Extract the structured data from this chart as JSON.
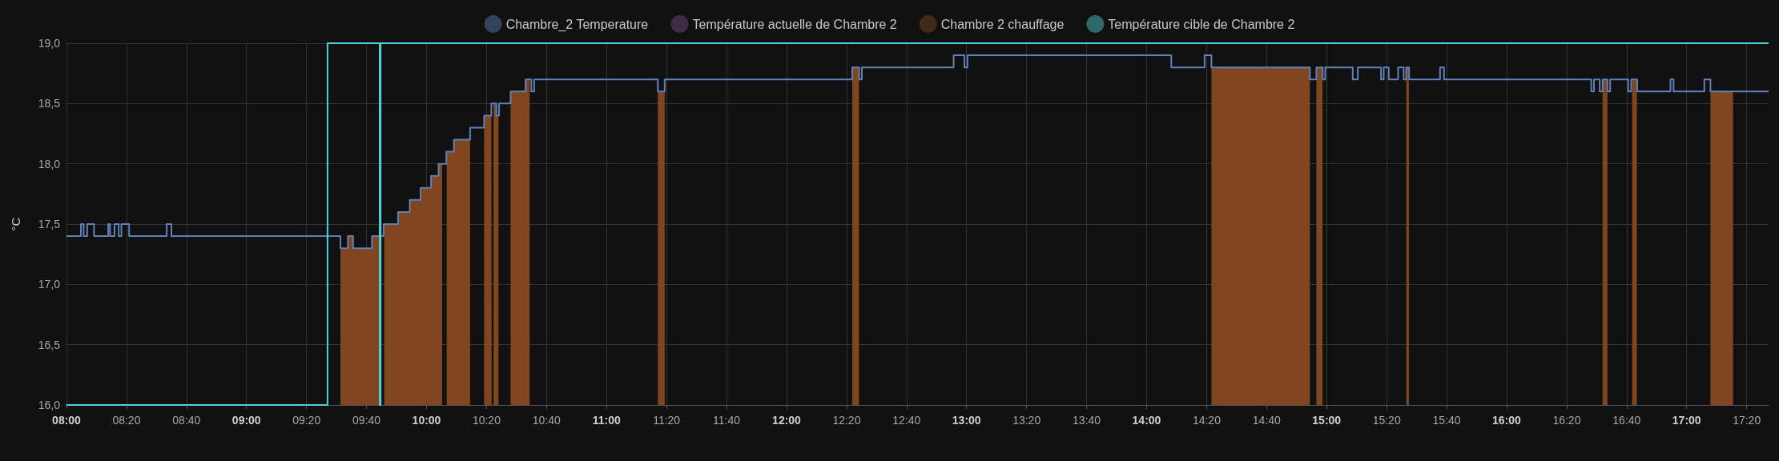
{
  "chart_data": {
    "type": "step",
    "ylabel": "°C",
    "xlim": [
      8,
      17.455
    ],
    "xticks": [
      {
        "value": 8,
        "label": "08:00"
      },
      {
        "value": 8.3333,
        "label": "08:20"
      },
      {
        "value": 8.6667,
        "label": "08:40"
      },
      {
        "value": 9,
        "label": "09:00"
      },
      {
        "value": 9.3333,
        "label": "09:20"
      },
      {
        "value": 9.6667,
        "label": "09:40"
      },
      {
        "value": 10,
        "label": "10:00"
      },
      {
        "value": 10.3333,
        "label": "10:20"
      },
      {
        "value": 10.6667,
        "label": "10:40"
      },
      {
        "value": 11,
        "label": "11:00"
      },
      {
        "value": 11.3333,
        "label": "11:20"
      },
      {
        "value": 11.6667,
        "label": "11:40"
      },
      {
        "value": 12,
        "label": "12:00"
      },
      {
        "value": 12.3333,
        "label": "12:20"
      },
      {
        "value": 12.6667,
        "label": "12:40"
      },
      {
        "value": 13,
        "label": "13:00"
      },
      {
        "value": 13.3333,
        "label": "13:20"
      },
      {
        "value": 13.6667,
        "label": "13:40"
      },
      {
        "value": 14,
        "label": "14:00"
      },
      {
        "value": 14.3333,
        "label": "14:20"
      },
      {
        "value": 14.6667,
        "label": "14:40"
      },
      {
        "value": 15,
        "label": "15:00"
      },
      {
        "value": 15.3333,
        "label": "15:20"
      },
      {
        "value": 15.6667,
        "label": "15:40"
      },
      {
        "value": 16,
        "label": "16:00"
      },
      {
        "value": 16.3333,
        "label": "16:20"
      },
      {
        "value": 16.6667,
        "label": "16:40"
      },
      {
        "value": 17,
        "label": "17:00"
      },
      {
        "value": 17.3333,
        "label": "17:20"
      }
    ],
    "ylim": [
      16,
      19
    ],
    "yticks": [
      {
        "value": 16,
        "label": "16,0"
      },
      {
        "value": 16.5,
        "label": "16,5"
      },
      {
        "value": 17,
        "label": "17,0"
      },
      {
        "value": 17.5,
        "label": "17,5"
      },
      {
        "value": 18,
        "label": "18,0"
      },
      {
        "value": 18.5,
        "label": "18,5"
      },
      {
        "value": 19,
        "label": "19,0"
      }
    ],
    "grid": true,
    "legend": "top",
    "marker": "none",
    "series": [
      {
        "name": "Chambre_2 Temperature",
        "type": "step",
        "color": "#5f80b8",
        "x": [
          8,
          8.08,
          8.095,
          8.115,
          8.153,
          8.232,
          8.242,
          8.267,
          8.29,
          8.305,
          8.348,
          8.557,
          8.583,
          9.522,
          9.563,
          9.592,
          9.697,
          9.762,
          9.842,
          9.907,
          9.967,
          10.025,
          10.067,
          10.11,
          10.152,
          10.242,
          10.32,
          10.36,
          10.388,
          10.403,
          10.467,
          10.55,
          10.582,
          10.598,
          11.285,
          11.323,
          12.365,
          12.403,
          12.418,
          12.928,
          12.988,
          13.005,
          14.137,
          14.322,
          14.36,
          14.907,
          14.943,
          14.978,
          14.992,
          15.145,
          15.173,
          15.302,
          15.317,
          15.345,
          15.397,
          15.428,
          15.442,
          15.458,
          15.63,
          15.652,
          16.47,
          16.485,
          16.517,
          16.533,
          16.56,
          16.575,
          16.675,
          16.692,
          16.725,
          16.91,
          16.927,
          17.098,
          17.132,
          17.455
        ],
        "values": [
          17.4,
          17.5,
          17.4,
          17.5,
          17.4,
          17.5,
          17.4,
          17.5,
          17.4,
          17.5,
          17.4,
          17.5,
          17.4,
          17.3,
          17.4,
          17.3,
          17.4,
          17.5,
          17.6,
          17.7,
          17.8,
          17.9,
          18.0,
          18.1,
          18.2,
          18.3,
          18.4,
          18.5,
          18.4,
          18.5,
          18.6,
          18.7,
          18.6,
          18.7,
          18.6,
          18.7,
          18.8,
          18.7,
          18.8,
          18.9,
          18.8,
          18.9,
          18.8,
          18.9,
          18.8,
          18.7,
          18.8,
          18.7,
          18.8,
          18.7,
          18.8,
          18.7,
          18.8,
          18.7,
          18.8,
          18.7,
          18.8,
          18.7,
          18.8,
          18.7,
          18.6,
          18.7,
          18.6,
          18.7,
          18.6,
          18.7,
          18.6,
          18.7,
          18.6,
          18.7,
          18.6,
          18.7,
          18.6,
          18.6
        ]
      },
      {
        "name": "Température actuelle de Chambre 2",
        "type": "step",
        "color": "#7d4a8c"
      },
      {
        "name": "Chambre 2 chauffage",
        "type": "area",
        "color": "#80461f",
        "x": [
          9.522,
          9.563,
          9.592,
          9.697,
          9.742,
          9.765,
          9.842,
          9.907,
          9.967,
          10.025,
          10.067,
          10.087,
          10.112,
          10.152,
          10.242,
          10.32,
          10.36,
          10.362,
          10.372,
          10.388,
          10.4,
          10.467,
          10.55,
          10.573,
          11.285,
          11.323,
          12.365,
          12.402,
          14.36,
          14.907,
          14.943,
          14.977,
          15.443,
          15.457,
          16.533,
          16.56,
          16.697,
          16.723,
          17.132,
          17.258
        ],
        "values": [
          17.3,
          17.4,
          17.3,
          17.4,
          16,
          17.5,
          17.6,
          17.7,
          17.8,
          17.9,
          18.0,
          16,
          18.1,
          18.2,
          16,
          18.4,
          18.5,
          16,
          18.5,
          18.4,
          16,
          18.6,
          18.7,
          16,
          18.6,
          16,
          18.8,
          16,
          18.8,
          16,
          18.8,
          16,
          18.8,
          16,
          18.7,
          16,
          18.7,
          16,
          18.6,
          16
        ]
      },
      {
        "name": "Température cible de Chambre 2",
        "type": "step",
        "color": "#4fd2d6",
        "x": [
          8,
          9.45,
          9.74,
          9.745,
          17.455
        ],
        "values": [
          16,
          19,
          16,
          19,
          19
        ]
      }
    ]
  }
}
